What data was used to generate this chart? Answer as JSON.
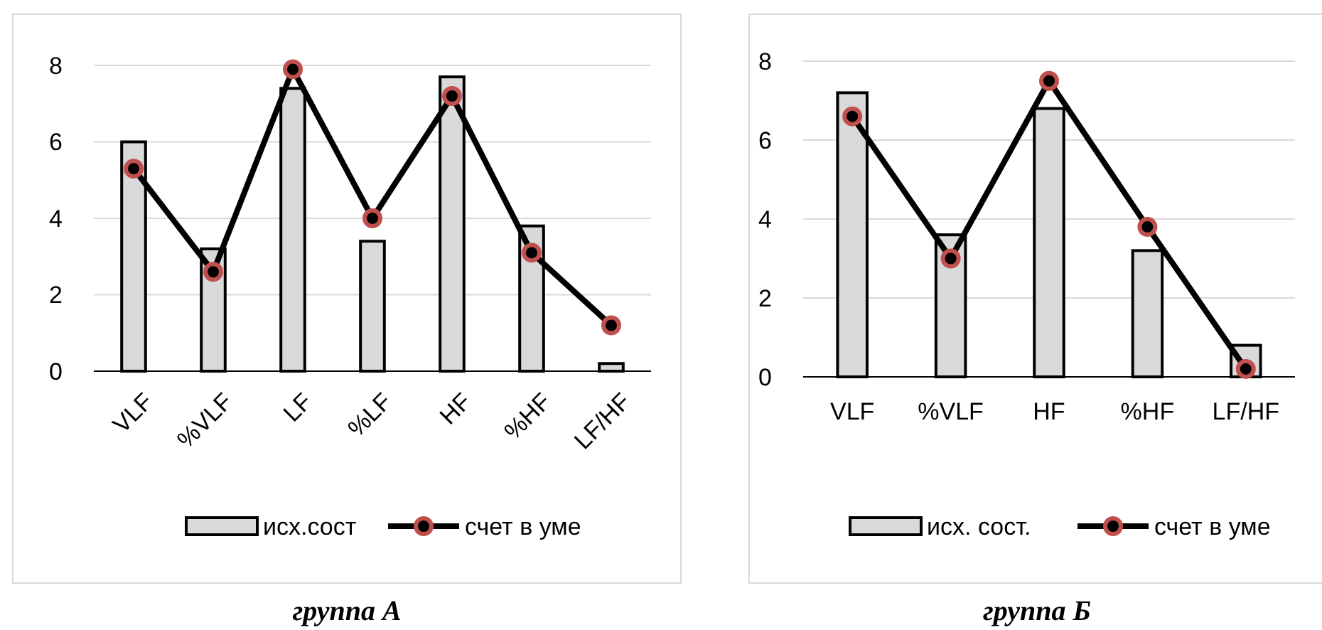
{
  "chart_data": [
    {
      "type": "bar",
      "title": "группа А",
      "categories": [
        "VLF",
        "%VLF",
        "LF",
        "%LF",
        "HF",
        "%HF",
        "LF/HF"
      ],
      "ylim": [
        0,
        8
      ],
      "yticks": [
        0,
        2,
        4,
        6,
        8
      ],
      "grid": "y",
      "legend": "bottom",
      "marker": "circle",
      "series": [
        {
          "name": "исх.сост",
          "color": "#d9d9d9",
          "values": [
            6.0,
            3.2,
            7.4,
            3.4,
            7.7,
            3.8,
            0.2
          ]
        },
        {
          "name": "счет в уме",
          "type": "line",
          "color": "#000000",
          "values": [
            5.3,
            2.6,
            7.9,
            4.0,
            7.2,
            3.1,
            1.2
          ]
        }
      ]
    },
    {
      "type": "bar",
      "title": "группа Б",
      "categories": [
        "VLF",
        "%VLF",
        "HF",
        "%HF",
        "LF/HF"
      ],
      "ylim": [
        0,
        8
      ],
      "yticks": [
        0,
        2,
        4,
        6,
        8
      ],
      "grid": "y",
      "legend": "bottom",
      "marker": "circle",
      "series": [
        {
          "name": "исх. сост.",
          "color": "#d9d9d9",
          "values": [
            7.2,
            3.6,
            6.8,
            3.2,
            0.8
          ]
        },
        {
          "name": "счет в уме",
          "type": "line",
          "color": "#000000",
          "values": [
            6.6,
            3.0,
            7.5,
            3.8,
            0.2
          ]
        }
      ]
    }
  ]
}
